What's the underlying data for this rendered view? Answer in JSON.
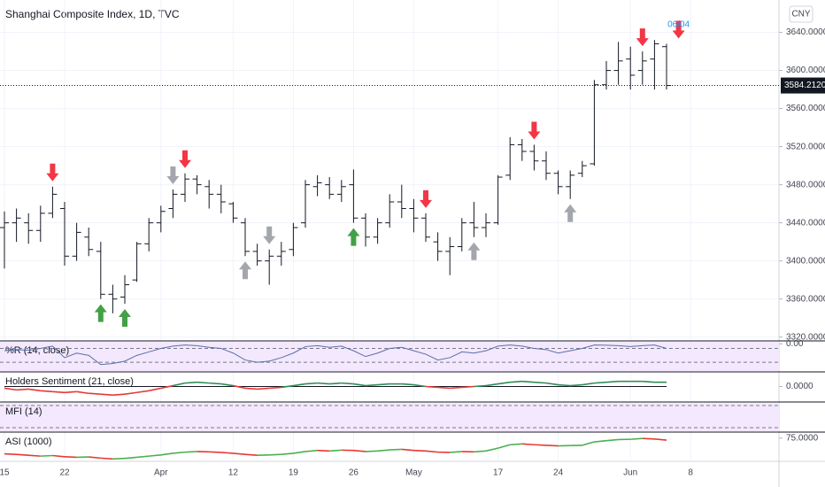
{
  "title": "Shanghai Composite Index, 1D, TVC",
  "currency": "CNY",
  "chart_data": {
    "type": "ohlc",
    "categories": [
      "15",
      null,
      null,
      null,
      null,
      "22",
      null,
      null,
      null,
      null,
      null,
      null,
      null,
      "Apr",
      null,
      null,
      null,
      null,
      null,
      "12",
      null,
      null,
      null,
      null,
      "19",
      null,
      null,
      null,
      null,
      "26",
      null,
      null,
      null,
      null,
      "May",
      null,
      null,
      null,
      null,
      null,
      null,
      "17",
      null,
      null,
      null,
      null,
      "24",
      null,
      null,
      null,
      null,
      null,
      "Jun",
      null,
      null,
      null,
      null,
      "8"
    ],
    "open": [
      3435,
      3440,
      3440,
      3432,
      3450,
      3455,
      3405,
      3425,
      3410,
      3365,
      3362,
      3380,
      3418,
      3440,
      3455,
      3470,
      3486,
      3478,
      3470,
      3460,
      3440,
      3410,
      3400,
      3405,
      3412,
      3440,
      3478,
      3480,
      3470,
      3480,
      3445,
      3425,
      3440,
      3462,
      3455,
      3445,
      3420,
      3410,
      3415,
      3440,
      3435,
      3440,
      3490,
      3522,
      3515,
      3505,
      3492,
      3478,
      3492,
      3502,
      3585,
      3600,
      3612,
      3600,
      3612,
      3625,
      null,
      null
    ],
    "high": [
      3452,
      3455,
      3450,
      3458,
      3478,
      3462,
      3440,
      3435,
      3420,
      3375,
      3385,
      3420,
      3445,
      3458,
      3475,
      3492,
      3490,
      3485,
      3480,
      3462,
      3445,
      3418,
      3412,
      3420,
      3440,
      3485,
      3490,
      3488,
      3485,
      3496,
      3450,
      3445,
      3470,
      3480,
      3465,
      3450,
      3430,
      3425,
      3445,
      3462,
      3450,
      3490,
      3530,
      3528,
      3522,
      3515,
      3495,
      3495,
      3505,
      3590,
      3610,
      3630,
      3625,
      3620,
      3632,
      3628,
      null,
      null
    ],
    "low": [
      3392,
      3420,
      3418,
      3420,
      3445,
      3395,
      3400,
      3405,
      3360,
      3345,
      3355,
      3378,
      3410,
      3430,
      3445,
      3462,
      3470,
      3455,
      3450,
      3440,
      3405,
      3395,
      3375,
      3395,
      3405,
      3435,
      3468,
      3465,
      3462,
      3440,
      3415,
      3418,
      3435,
      3445,
      3430,
      3420,
      3400,
      3385,
      3410,
      3425,
      3425,
      3438,
      3485,
      3505,
      3495,
      3485,
      3470,
      3465,
      3488,
      3500,
      3580,
      3585,
      3580,
      3585,
      3580,
      3580,
      null,
      null
    ],
    "close": [
      3440,
      3445,
      3432,
      3450,
      3470,
      3405,
      3430,
      3412,
      3365,
      3360,
      3375,
      3418,
      3440,
      3452,
      3470,
      3486,
      3480,
      3470,
      3462,
      3445,
      3410,
      3400,
      3405,
      3410,
      3435,
      3480,
      3482,
      3470,
      3478,
      3445,
      3425,
      3440,
      3462,
      3455,
      3445,
      3425,
      3410,
      3415,
      3440,
      3435,
      3440,
      3488,
      3522,
      3515,
      3505,
      3492,
      3478,
      3490,
      3500,
      3585,
      3600,
      3610,
      3595,
      3610,
      3628,
      3584.212,
      null,
      null
    ],
    "color": "#131722",
    "ylim": [
      3316,
      3674
    ],
    "yticks": [
      {
        "value": 3320,
        "label": "3320.0000"
      },
      {
        "value": 3360,
        "label": "3360.0000"
      },
      {
        "value": 3400,
        "label": "3400.0000"
      },
      {
        "value": 3440,
        "label": "3440.0000"
      },
      {
        "value": 3480,
        "label": "3480.0000"
      },
      {
        "value": 3520,
        "label": "3520.0000"
      },
      {
        "value": 3560,
        "label": "3560.0000"
      },
      {
        "value": 3600,
        "label": "3600.0000"
      },
      {
        "value": 3640,
        "label": "3640.0000"
      }
    ],
    "grid": true,
    "price_line": {
      "value": 3584.212,
      "label": "3584.2120"
    },
    "signals": [
      {
        "index": 4,
        "kind": "sell"
      },
      {
        "index": 15,
        "kind": "sell"
      },
      {
        "index": 35,
        "kind": "sell"
      },
      {
        "index": 44,
        "kind": "sell"
      },
      {
        "index": 53,
        "kind": "sell"
      },
      {
        "index": 56,
        "kind": "sell"
      },
      {
        "index": 8,
        "kind": "buy"
      },
      {
        "index": 10,
        "kind": "buy"
      },
      {
        "index": 29,
        "kind": "buy"
      },
      {
        "index": 20,
        "kind": "buy-gray"
      },
      {
        "index": 39,
        "kind": "buy-gray"
      },
      {
        "index": 47,
        "kind": "buy-gray"
      },
      {
        "index": 14,
        "kind": "sell-gray"
      },
      {
        "index": 22,
        "kind": "sell-gray"
      }
    ],
    "signal_colors": {
      "sell": "#f23645",
      "buy": "#43a047",
      "buy-gray": "#a3a6ad",
      "sell-gray": "#a3a6ad"
    },
    "annotation": {
      "index": 56,
      "text": "06/04",
      "color": "#2196f3"
    },
    "panes": [
      {
        "title": "%R (14, close)",
        "style": "line",
        "color": "#5b6fa8",
        "background": "#f3e8fd",
        "ylim": [
          -110,
          5
        ],
        "yticks": [
          {
            "value": 0,
            "label": "0.00"
          }
        ],
        "bands": [
          -20,
          -80
        ],
        "values": [
          -30,
          -25,
          -28,
          -20,
          -10,
          -60,
          -40,
          -50,
          -90,
          -85,
          -75,
          -50,
          -35,
          -20,
          -10,
          -5,
          -8,
          -15,
          -20,
          -40,
          -70,
          -80,
          -75,
          -60,
          -40,
          -12,
          -8,
          -15,
          -10,
          -30,
          -55,
          -40,
          -20,
          -15,
          -30,
          -45,
          -70,
          -60,
          -35,
          -40,
          -30,
          -10,
          -5,
          -10,
          -20,
          -25,
          -40,
          -30,
          -20,
          -5,
          -6,
          -8,
          -12,
          -8,
          -5,
          -20,
          null,
          null
        ]
      },
      {
        "title": "Holders Sentiment (21, close)",
        "style": "sign",
        "up": "#2e8b57",
        "down": "#e53935",
        "ylim": [
          -15,
          15
        ],
        "yticks": [
          {
            "value": 0,
            "label": "0.0000"
          }
        ],
        "values": [
          -2,
          -4,
          -3,
          -5,
          -6,
          -7,
          -6,
          -8,
          -9,
          -10,
          -9,
          -7,
          -5,
          -2,
          1,
          4,
          5,
          4,
          3,
          1,
          -2,
          -3,
          -2,
          -1,
          1,
          3,
          4,
          3,
          4,
          3,
          1,
          2,
          3,
          3,
          2,
          0,
          -1,
          -2,
          -1,
          0,
          1,
          3,
          5,
          6,
          5,
          4,
          2,
          1,
          2,
          4,
          5,
          6,
          6,
          6,
          5,
          5,
          null,
          null
        ]
      },
      {
        "title": "MFI (14)",
        "style": "empty",
        "background": "#f3e8fd"
      },
      {
        "title": "ASI (1000)",
        "style": "trend",
        "up": "#4caf50",
        "down": "#e53935",
        "ylim": [
          0,
          90
        ],
        "yticks": [
          {
            "value": 75,
            "label": "75.0000"
          }
        ],
        "values": [
          20,
          18,
          15,
          12,
          14,
          10,
          8,
          9,
          5,
          2,
          4,
          8,
          12,
          16,
          22,
          26,
          28,
          27,
          25,
          22,
          18,
          15,
          16,
          18,
          22,
          28,
          32,
          30,
          33,
          32,
          28,
          30,
          34,
          36,
          32,
          30,
          26,
          25,
          28,
          27,
          30,
          40,
          52,
          55,
          52,
          50,
          48,
          49,
          50,
          62,
          66,
          70,
          71,
          74,
          72,
          68,
          null,
          null
        ]
      }
    ]
  }
}
